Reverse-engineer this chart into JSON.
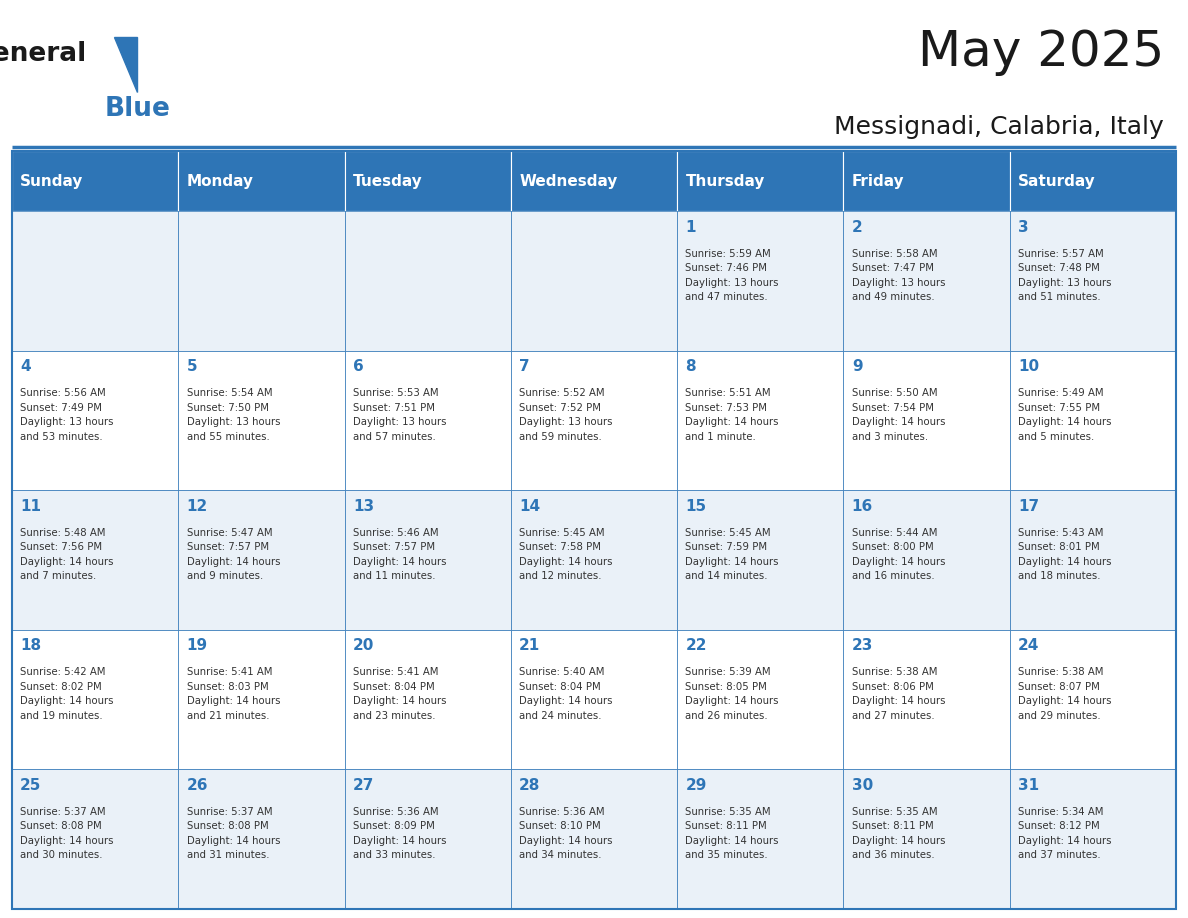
{
  "title": "May 2025",
  "subtitle": "Messignadi, Calabria, Italy",
  "header_bg": "#2E75B6",
  "header_text_color": "#FFFFFF",
  "day_names": [
    "Sunday",
    "Monday",
    "Tuesday",
    "Wednesday",
    "Thursday",
    "Friday",
    "Saturday"
  ],
  "row1_bg": "#EAF1F8",
  "row2_bg": "#FFFFFF",
  "cell_border_color": "#2E75B6",
  "title_color": "#1a1a1a",
  "subtitle_color": "#1a1a1a",
  "number_color": "#2E75B6",
  "text_color": "#333333",
  "calendar": [
    [
      {
        "day": "",
        "info": ""
      },
      {
        "day": "",
        "info": ""
      },
      {
        "day": "",
        "info": ""
      },
      {
        "day": "",
        "info": ""
      },
      {
        "day": "1",
        "info": "Sunrise: 5:59 AM\nSunset: 7:46 PM\nDaylight: 13 hours\nand 47 minutes."
      },
      {
        "day": "2",
        "info": "Sunrise: 5:58 AM\nSunset: 7:47 PM\nDaylight: 13 hours\nand 49 minutes."
      },
      {
        "day": "3",
        "info": "Sunrise: 5:57 AM\nSunset: 7:48 PM\nDaylight: 13 hours\nand 51 minutes."
      }
    ],
    [
      {
        "day": "4",
        "info": "Sunrise: 5:56 AM\nSunset: 7:49 PM\nDaylight: 13 hours\nand 53 minutes."
      },
      {
        "day": "5",
        "info": "Sunrise: 5:54 AM\nSunset: 7:50 PM\nDaylight: 13 hours\nand 55 minutes."
      },
      {
        "day": "6",
        "info": "Sunrise: 5:53 AM\nSunset: 7:51 PM\nDaylight: 13 hours\nand 57 minutes."
      },
      {
        "day": "7",
        "info": "Sunrise: 5:52 AM\nSunset: 7:52 PM\nDaylight: 13 hours\nand 59 minutes."
      },
      {
        "day": "8",
        "info": "Sunrise: 5:51 AM\nSunset: 7:53 PM\nDaylight: 14 hours\nand 1 minute."
      },
      {
        "day": "9",
        "info": "Sunrise: 5:50 AM\nSunset: 7:54 PM\nDaylight: 14 hours\nand 3 minutes."
      },
      {
        "day": "10",
        "info": "Sunrise: 5:49 AM\nSunset: 7:55 PM\nDaylight: 14 hours\nand 5 minutes."
      }
    ],
    [
      {
        "day": "11",
        "info": "Sunrise: 5:48 AM\nSunset: 7:56 PM\nDaylight: 14 hours\nand 7 minutes."
      },
      {
        "day": "12",
        "info": "Sunrise: 5:47 AM\nSunset: 7:57 PM\nDaylight: 14 hours\nand 9 minutes."
      },
      {
        "day": "13",
        "info": "Sunrise: 5:46 AM\nSunset: 7:57 PM\nDaylight: 14 hours\nand 11 minutes."
      },
      {
        "day": "14",
        "info": "Sunrise: 5:45 AM\nSunset: 7:58 PM\nDaylight: 14 hours\nand 12 minutes."
      },
      {
        "day": "15",
        "info": "Sunrise: 5:45 AM\nSunset: 7:59 PM\nDaylight: 14 hours\nand 14 minutes."
      },
      {
        "day": "16",
        "info": "Sunrise: 5:44 AM\nSunset: 8:00 PM\nDaylight: 14 hours\nand 16 minutes."
      },
      {
        "day": "17",
        "info": "Sunrise: 5:43 AM\nSunset: 8:01 PM\nDaylight: 14 hours\nand 18 minutes."
      }
    ],
    [
      {
        "day": "18",
        "info": "Sunrise: 5:42 AM\nSunset: 8:02 PM\nDaylight: 14 hours\nand 19 minutes."
      },
      {
        "day": "19",
        "info": "Sunrise: 5:41 AM\nSunset: 8:03 PM\nDaylight: 14 hours\nand 21 minutes."
      },
      {
        "day": "20",
        "info": "Sunrise: 5:41 AM\nSunset: 8:04 PM\nDaylight: 14 hours\nand 23 minutes."
      },
      {
        "day": "21",
        "info": "Sunrise: 5:40 AM\nSunset: 8:04 PM\nDaylight: 14 hours\nand 24 minutes."
      },
      {
        "day": "22",
        "info": "Sunrise: 5:39 AM\nSunset: 8:05 PM\nDaylight: 14 hours\nand 26 minutes."
      },
      {
        "day": "23",
        "info": "Sunrise: 5:38 AM\nSunset: 8:06 PM\nDaylight: 14 hours\nand 27 minutes."
      },
      {
        "day": "24",
        "info": "Sunrise: 5:38 AM\nSunset: 8:07 PM\nDaylight: 14 hours\nand 29 minutes."
      }
    ],
    [
      {
        "day": "25",
        "info": "Sunrise: 5:37 AM\nSunset: 8:08 PM\nDaylight: 14 hours\nand 30 minutes."
      },
      {
        "day": "26",
        "info": "Sunrise: 5:37 AM\nSunset: 8:08 PM\nDaylight: 14 hours\nand 31 minutes."
      },
      {
        "day": "27",
        "info": "Sunrise: 5:36 AM\nSunset: 8:09 PM\nDaylight: 14 hours\nand 33 minutes."
      },
      {
        "day": "28",
        "info": "Sunrise: 5:36 AM\nSunset: 8:10 PM\nDaylight: 14 hours\nand 34 minutes."
      },
      {
        "day": "29",
        "info": "Sunrise: 5:35 AM\nSunset: 8:11 PM\nDaylight: 14 hours\nand 35 minutes."
      },
      {
        "day": "30",
        "info": "Sunrise: 5:35 AM\nSunset: 8:11 PM\nDaylight: 14 hours\nand 36 minutes."
      },
      {
        "day": "31",
        "info": "Sunrise: 5:34 AM\nSunset: 8:12 PM\nDaylight: 14 hours\nand 37 minutes."
      }
    ]
  ]
}
